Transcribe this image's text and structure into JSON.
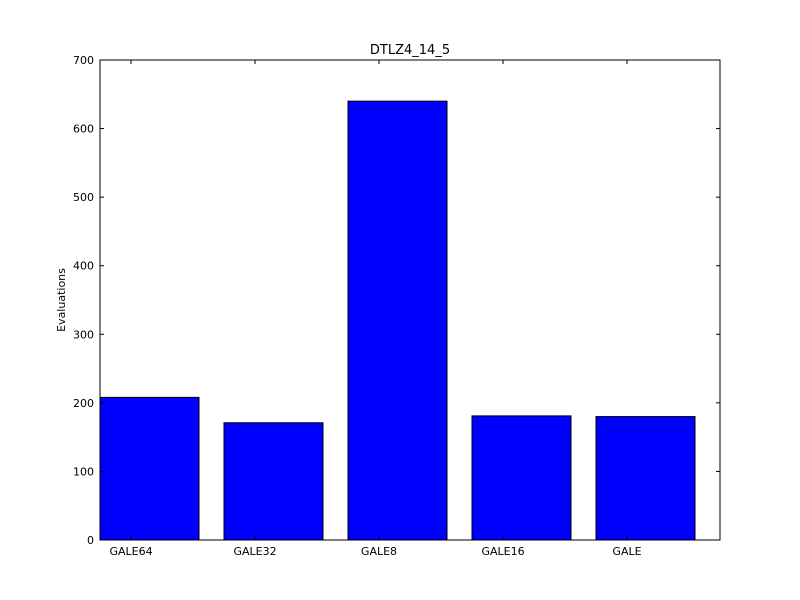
{
  "chart_data": {
    "type": "bar",
    "title": "DTLZ4_14_5",
    "xlabel": "",
    "ylabel": "Evaluations",
    "categories": [
      "GALE64",
      "GALE32",
      "GALE8",
      "GALE16",
      "GALE"
    ],
    "values": [
      208,
      171,
      640,
      181,
      180
    ],
    "ylim": [
      0,
      700
    ],
    "yticks": [
      0,
      100,
      200,
      300,
      400,
      500,
      600,
      700
    ],
    "grid": false,
    "legend": "none",
    "bar_color": "#0000ff",
    "edge_color": "#000000"
  }
}
